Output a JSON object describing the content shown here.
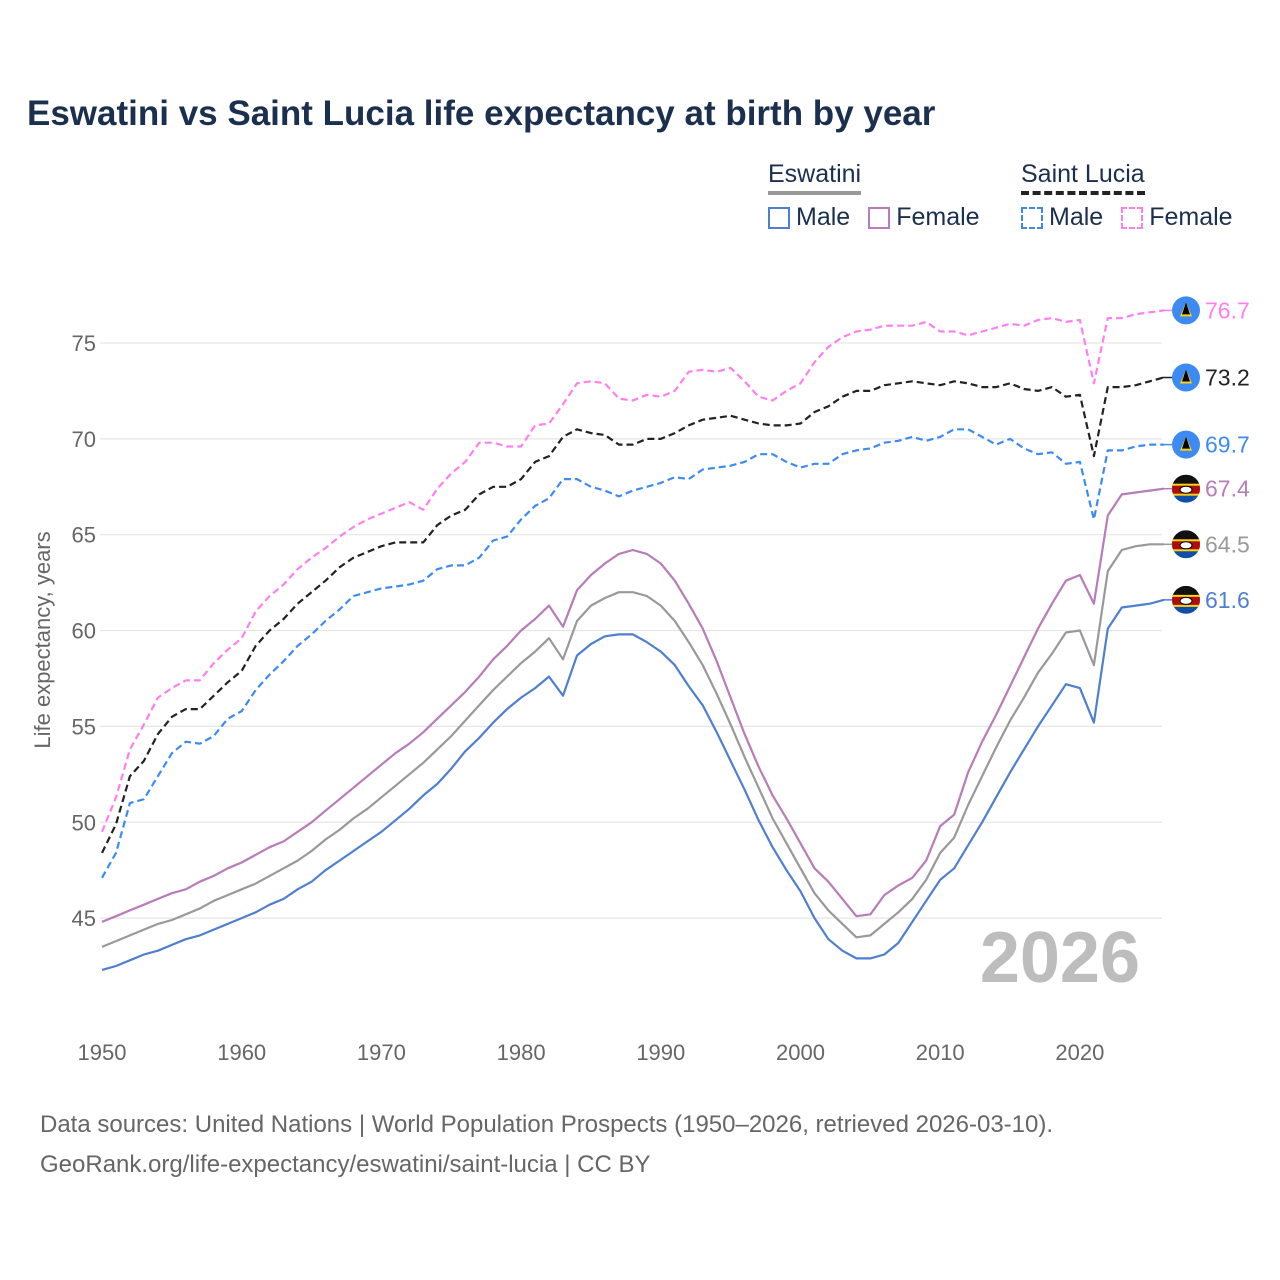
{
  "chart_data": {
    "type": "line",
    "title": "Eswatini vs Saint Lucia life expectancy at birth by year",
    "xlabel": "",
    "ylabel": "Life expectancy, years",
    "xlim": [
      1950,
      2026
    ],
    "ylim": [
      40,
      78
    ],
    "x_ticks": [
      "1950",
      "1960",
      "1970",
      "1980",
      "1990",
      "2000",
      "2010",
      "2020"
    ],
    "y_ticks": [
      "45",
      "50",
      "55",
      "60",
      "65",
      "70",
      "75"
    ],
    "grid": true,
    "year_watermark": "2026",
    "x_start": 1950,
    "legend": {
      "position": "top-right",
      "groups": [
        {
          "country": "Eswatini",
          "items": [
            "Male",
            "Female"
          ]
        },
        {
          "country": "Saint Lucia",
          "items": [
            "Male",
            "Female"
          ]
        }
      ]
    },
    "series": [
      {
        "name": "Saint Lucia Female",
        "color": "#ff7ff0",
        "dashed": true,
        "flag": "saint-lucia",
        "end_label": "76.7",
        "values": [
          49.5,
          51.3,
          53.8,
          55.1,
          56.5,
          57.0,
          57.4,
          57.4,
          58.3,
          59.0,
          59.6,
          61.0,
          61.8,
          62.4,
          63.2,
          63.8,
          64.3,
          64.9,
          65.4,
          65.8,
          66.1,
          66.4,
          66.7,
          66.3,
          67.4,
          68.2,
          68.8,
          69.8,
          69.8,
          69.6,
          69.6,
          70.7,
          70.8,
          71.8,
          72.9,
          73.0,
          72.9,
          72.1,
          72.0,
          72.3,
          72.2,
          72.5,
          73.5,
          73.6,
          73.5,
          73.7,
          73.0,
          72.2,
          72.0,
          72.5,
          72.9,
          74.0,
          74.8,
          75.3,
          75.6,
          75.7,
          75.9,
          75.9,
          75.9,
          76.1,
          75.6,
          75.6,
          75.4,
          75.6,
          75.8,
          76.0,
          75.9,
          76.2,
          76.3,
          76.1,
          76.2,
          72.9,
          76.3,
          76.3,
          76.5,
          76.6,
          76.7
        ]
      },
      {
        "name": "Saint Lucia",
        "color": "#222222",
        "dashed": true,
        "flag": "saint-lucia",
        "end_label": "73.2",
        "values": [
          48.4,
          49.9,
          52.4,
          53.2,
          54.6,
          55.5,
          55.9,
          55.9,
          56.6,
          57.3,
          57.9,
          59.2,
          60.0,
          60.6,
          61.4,
          62.0,
          62.6,
          63.3,
          63.8,
          64.1,
          64.4,
          64.6,
          64.6,
          64.6,
          65.5,
          66.0,
          66.3,
          67.1,
          67.5,
          67.5,
          67.9,
          68.8,
          69.1,
          70.1,
          70.5,
          70.3,
          70.2,
          69.7,
          69.7,
          70.0,
          70.0,
          70.3,
          70.7,
          71.0,
          71.1,
          71.2,
          71.0,
          70.8,
          70.7,
          70.7,
          70.8,
          71.4,
          71.7,
          72.2,
          72.5,
          72.5,
          72.8,
          72.9,
          73.0,
          72.9,
          72.8,
          73.0,
          72.9,
          72.7,
          72.7,
          72.9,
          72.6,
          72.5,
          72.7,
          72.2,
          72.3,
          69.1,
          72.7,
          72.7,
          72.8,
          73.0,
          73.2
        ]
      },
      {
        "name": "Saint Lucia Male",
        "color": "#3d8bf2",
        "dashed": true,
        "flag": "saint-lucia",
        "end_label": "69.7",
        "values": [
          47.1,
          48.4,
          51.0,
          51.2,
          52.4,
          53.6,
          54.2,
          54.1,
          54.5,
          55.4,
          55.8,
          56.9,
          57.7,
          58.4,
          59.2,
          59.8,
          60.5,
          61.1,
          61.8,
          62.0,
          62.2,
          62.3,
          62.4,
          62.6,
          63.2,
          63.4,
          63.4,
          63.8,
          64.7,
          64.9,
          65.8,
          66.5,
          66.9,
          67.9,
          67.9,
          67.5,
          67.3,
          67.0,
          67.3,
          67.5,
          67.7,
          68.0,
          67.9,
          68.4,
          68.5,
          68.6,
          68.8,
          69.2,
          69.2,
          68.8,
          68.5,
          68.7,
          68.7,
          69.2,
          69.4,
          69.5,
          69.8,
          69.9,
          70.1,
          69.9,
          70.1,
          70.5,
          70.5,
          70.1,
          69.7,
          70.0,
          69.5,
          69.2,
          69.3,
          68.7,
          68.8,
          65.8,
          69.4,
          69.4,
          69.6,
          69.7,
          69.7
        ]
      },
      {
        "name": "Eswatini Female",
        "color": "#b77cb9",
        "dashed": false,
        "flag": "eswatini",
        "end_label": "67.4",
        "values": [
          44.8,
          45.1,
          45.4,
          45.7,
          46.0,
          46.3,
          46.5,
          46.9,
          47.2,
          47.6,
          47.9,
          48.3,
          48.7,
          49.0,
          49.5,
          50.0,
          50.6,
          51.2,
          51.8,
          52.4,
          53.0,
          53.6,
          54.1,
          54.7,
          55.4,
          56.1,
          56.8,
          57.6,
          58.5,
          59.2,
          60.0,
          60.6,
          61.3,
          60.2,
          62.1,
          62.9,
          63.5,
          64.0,
          64.2,
          64.0,
          63.5,
          62.6,
          61.4,
          60.1,
          58.4,
          56.5,
          54.6,
          52.9,
          51.4,
          50.2,
          48.9,
          47.6,
          46.9,
          46.0,
          45.1,
          45.2,
          46.2,
          46.7,
          47.1,
          48.0,
          49.8,
          50.4,
          52.6,
          54.2,
          55.6,
          57.1,
          58.6,
          60.1,
          61.4,
          62.6,
          62.9,
          61.4,
          66.0,
          67.1,
          67.2,
          67.3,
          67.4
        ]
      },
      {
        "name": "Eswatini",
        "color": "#999999",
        "dashed": false,
        "flag": "eswatini",
        "end_label": "64.5",
        "values": [
          43.5,
          43.8,
          44.1,
          44.4,
          44.7,
          44.9,
          45.2,
          45.5,
          45.9,
          46.2,
          46.5,
          46.8,
          47.2,
          47.6,
          48.0,
          48.5,
          49.1,
          49.6,
          50.2,
          50.7,
          51.3,
          51.9,
          52.5,
          53.1,
          53.8,
          54.5,
          55.3,
          56.1,
          56.9,
          57.6,
          58.3,
          58.9,
          59.6,
          58.5,
          60.5,
          61.3,
          61.7,
          62.0,
          62.0,
          61.8,
          61.3,
          60.5,
          59.4,
          58.2,
          56.7,
          55.1,
          53.4,
          51.8,
          50.2,
          48.9,
          47.6,
          46.3,
          45.4,
          44.7,
          44.0,
          44.1,
          44.7,
          45.3,
          46.0,
          47.0,
          48.4,
          49.2,
          50.9,
          52.4,
          53.9,
          55.3,
          56.5,
          57.8,
          58.8,
          59.9,
          60.0,
          58.2,
          63.1,
          64.2,
          64.4,
          64.5,
          64.5
        ]
      },
      {
        "name": "Eswatini Male",
        "color": "#4f7fcf",
        "dashed": false,
        "flag": "eswatini",
        "end_label": "61.6",
        "values": [
          42.3,
          42.5,
          42.8,
          43.1,
          43.3,
          43.6,
          43.9,
          44.1,
          44.4,
          44.7,
          45.0,
          45.3,
          45.7,
          46.0,
          46.5,
          46.9,
          47.5,
          48.0,
          48.5,
          49.0,
          49.5,
          50.1,
          50.7,
          51.4,
          52.0,
          52.8,
          53.7,
          54.4,
          55.2,
          55.9,
          56.5,
          57.0,
          57.6,
          56.6,
          58.7,
          59.3,
          59.7,
          59.8,
          59.8,
          59.4,
          58.9,
          58.2,
          57.1,
          56.1,
          54.7,
          53.2,
          51.7,
          50.1,
          48.7,
          47.5,
          46.4,
          45.0,
          43.9,
          43.3,
          42.9,
          42.9,
          43.1,
          43.7,
          44.8,
          45.9,
          47.0,
          47.6,
          48.8,
          50.0,
          51.3,
          52.6,
          53.8,
          55.0,
          56.1,
          57.2,
          57.0,
          55.2,
          60.1,
          61.2,
          61.3,
          61.4,
          61.6
        ]
      }
    ]
  },
  "footer": {
    "line1": "Data sources: United Nations | World Population Prospects (1950–2026, retrieved 2026-03-10).",
    "line2": "GeoRank.org/life-expectancy/eswatini/saint-lucia | CC BY"
  }
}
